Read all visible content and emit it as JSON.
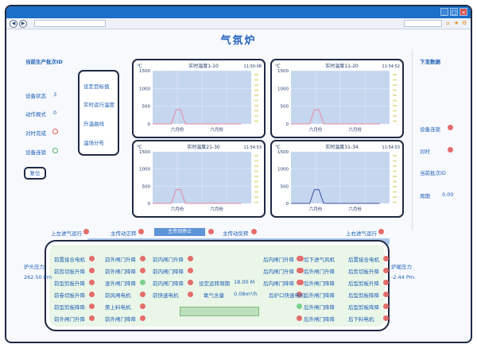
{
  "page": {
    "title": "气氛炉"
  },
  "left": {
    "section_title": "当前生产批次ID",
    "items": [
      {
        "label": "设备状态",
        "value": "3"
      },
      {
        "label": "动作报式",
        "value": "0"
      },
      {
        "label": "对时完成",
        "value": ""
      },
      {
        "label": "设备连锁",
        "value": ""
      }
    ],
    "button_label": "复位"
  },
  "side_menu": {
    "items": [
      "设定目标值",
      "实时运行温度",
      "升温曲线",
      "温场分布"
    ]
  },
  "right": {
    "section_title": "下发数据",
    "items": [
      {
        "label": "设备连锁",
        "value": ""
      },
      {
        "label": "对时",
        "value": ""
      },
      {
        "label": "当前批次ID",
        "value": ""
      },
      {
        "label": "周期",
        "value": "0.00"
      }
    ]
  },
  "charts": [
    {
      "unit": "℃",
      "title": "实时温度1-10",
      "time": "11:50:08",
      "xlabels": [
        "六月份",
        "六月份"
      ]
    },
    {
      "unit": "℃",
      "title": "实时温度11-20",
      "time": "11:54:52",
      "xlabels": [
        "六月份",
        "六月份"
      ]
    },
    {
      "unit": "℃",
      "title": "实时温度21-30",
      "time": "11:54:53",
      "xlabels": [
        "六月份",
        "六月份"
      ]
    },
    {
      "unit": "℃",
      "title": "实时温度31-34",
      "time": "11:54:53",
      "xlabels": [
        "六月份",
        "六月份"
      ]
    }
  ],
  "chart_data": [
    {
      "type": "line",
      "title": "实时温度1-10",
      "ylabel": "℃",
      "ylim": [
        0,
        1500
      ],
      "yticks": [
        0,
        500,
        1000,
        1500
      ],
      "series": [
        {
          "color": "#e88aa0",
          "values": [
            0,
            0,
            0,
            0,
            0,
            400,
            400,
            0,
            0,
            0,
            0,
            0,
            0,
            0,
            0,
            0,
            0,
            0,
            0,
            0
          ]
        }
      ]
    },
    {
      "type": "line",
      "title": "实时温度11-20",
      "ylabel": "℃",
      "ylim": [
        0,
        1500
      ],
      "yticks": [
        0,
        500,
        1000,
        1500
      ],
      "series": [
        {
          "color": "#e88aa0",
          "values": [
            0,
            0,
            0,
            0,
            0,
            400,
            400,
            0,
            0,
            0,
            0,
            0,
            0,
            0,
            0,
            0,
            0,
            0,
            0,
            0
          ]
        }
      ]
    },
    {
      "type": "line",
      "title": "实时温度21-30",
      "ylabel": "℃",
      "ylim": [
        0,
        1500
      ],
      "yticks": [
        0,
        500,
        1000,
        1500
      ],
      "series": [
        {
          "color": "#e88aa0",
          "values": [
            0,
            0,
            0,
            0,
            0,
            400,
            400,
            0,
            0,
            0,
            0,
            0,
            0,
            0,
            0,
            0,
            0,
            0,
            0,
            0
          ]
        }
      ]
    },
    {
      "type": "line",
      "title": "实时温度31-34",
      "ylabel": "℃",
      "ylim": [
        0,
        1500
      ],
      "yticks": [
        0,
        500,
        1000,
        1500
      ],
      "series": [
        {
          "color": "#3a4fa0",
          "values": [
            0,
            0,
            0,
            0,
            0,
            400,
            400,
            0,
            0,
            0,
            0,
            0,
            0,
            0,
            0,
            0,
            0,
            0,
            0,
            0
          ]
        }
      ]
    }
  ],
  "top_controls": {
    "left_gas": "上左进气运行",
    "main_forward": "主传动正转",
    "main_status": "主传动停止",
    "main_reverse": "主传动反转",
    "right_gas": "上右进气运行"
  },
  "furnace": {
    "left_pressure_label": "炉头压力",
    "left_pressure_value": "262.50 Pm",
    "right_pressure_label": "炉尾压力",
    "right_pressure_value": "-2.44 Pm",
    "col1": [
      "前置接合电机",
      "前剪切板升降",
      "前型剪板升降",
      "前卷切板升降",
      "前型剪板降降",
      "前外闸门升降"
    ],
    "col2": [
      "前外闸门升降",
      "前外闸门降降",
      "竖外闸门降降",
      "前风闸电机",
      "第上料电机",
      "前外闸门降降"
    ],
    "col3": [
      "前内闸门升降",
      "前内闸门降降",
      "前内闸门降降",
      "前快速电机"
    ],
    "mid_setting_label": "设定运转周期",
    "mid_setting_value": "18.00 M",
    "oxygen_label": "氧气含量",
    "oxygen_value": "0.08m²/h",
    "mid_fast_label": "后炉口快速电机",
    "col4": [
      "后内闸门升降",
      "后内闸门升降",
      "后内闸门降降"
    ],
    "col5": [
      "后下进气风机",
      "后外闸门升降",
      "后外闸门降降",
      "后外闸门降降",
      "后外闸门降降",
      "后外闸门降降"
    ],
    "col6": [
      "后置接合电机",
      "后剪切板升降",
      "后型剪板升降",
      "后型剪板降降",
      "后型剪板降降",
      "后下料电机"
    ]
  }
}
